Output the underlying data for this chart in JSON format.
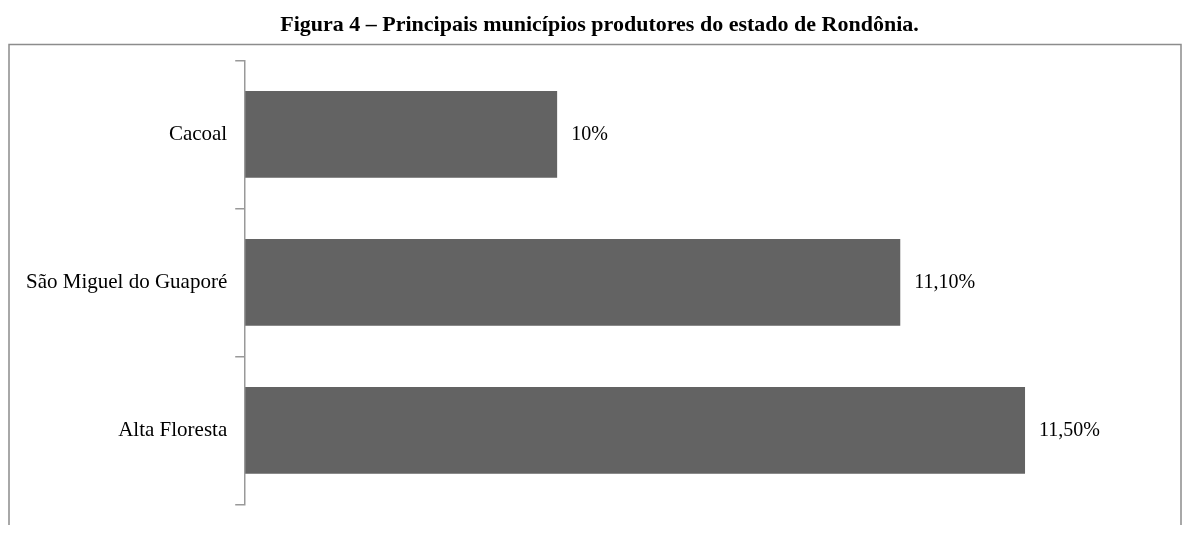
{
  "chart_data": {
    "type": "bar",
    "orientation": "horizontal",
    "title": "Figura 4 – Principais municípios produtores do estado de Rondônia.",
    "categories": [
      "Cacoal",
      "São Miguel do Guaporé",
      "Alta Floresta"
    ],
    "values": [
      10,
      11.1,
      11.5
    ],
    "value_labels": [
      "10%",
      "11,10%",
      "11,50%"
    ],
    "color": "#636363",
    "xlim": [
      9,
      12
    ],
    "tick_labels": "y",
    "legend": false
  }
}
